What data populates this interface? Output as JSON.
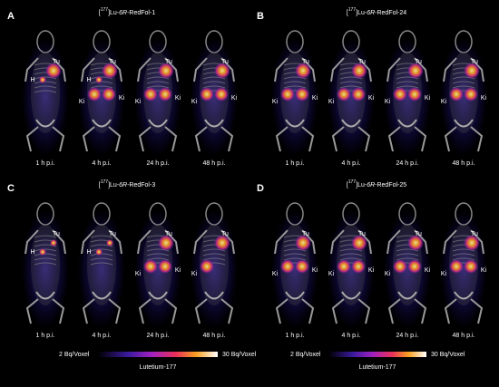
{
  "panels": [
    {
      "letter": "A",
      "title": [
        "[",
        "177",
        "]Lu-",
        "6R",
        "-RedFol-1"
      ],
      "images": [
        {
          "time": "1 h p.i.",
          "labels": [
            "Tu",
            "H"
          ]
        },
        {
          "time": "4 h p.i.",
          "labels": [
            "H",
            "Tu",
            "Ki",
            "Ki"
          ]
        },
        {
          "time": "24 h p.i.",
          "labels": [
            "Tu",
            "Ki",
            "Ki"
          ]
        },
        {
          "time": "48 h p.i.",
          "labels": [
            "Tu",
            "Ki",
            "Ki"
          ]
        }
      ]
    },
    {
      "letter": "B",
      "title": [
        "[",
        "177",
        "]Lu-",
        "6R",
        "-RedFol-24"
      ],
      "images": [
        {
          "time": "1 h p.i.",
          "labels": [
            "Tu",
            "Ki",
            "Ki"
          ]
        },
        {
          "time": "4 h p.i.",
          "labels": [
            "Tu",
            "Ki",
            "Ki"
          ]
        },
        {
          "time": "24 h p.i.",
          "labels": [
            "Tu",
            "Ki",
            "Ki"
          ]
        },
        {
          "time": "48 h p.i.",
          "labels": [
            "Tu",
            "Ki",
            "Ki"
          ]
        }
      ]
    },
    {
      "letter": "C",
      "title": [
        "[",
        "177",
        "]Lu-",
        "6R",
        "-RedFol-3"
      ],
      "images": [
        {
          "time": "1 h p.i.",
          "labels": [
            "Tu",
            "H"
          ]
        },
        {
          "time": "4 h p.i.",
          "labels": [
            "Tu",
            "H"
          ]
        },
        {
          "time": "24 h p.i.",
          "labels": [
            "Tu",
            "Ki",
            "Ki"
          ]
        },
        {
          "time": "48 h p.i.",
          "labels": [
            "Tu",
            "Ki"
          ]
        }
      ]
    },
    {
      "letter": "D",
      "title": [
        "[",
        "177",
        "]Lu-",
        "6R",
        "-RedFol-25"
      ],
      "images": [
        {
          "time": "1 h p.i.",
          "labels": [
            "Tu",
            "Ki",
            "Ki"
          ]
        },
        {
          "time": "4 h p.i.",
          "labels": [
            "Tu",
            "Ki",
            "Ki"
          ]
        },
        {
          "time": "24 h p.i.",
          "labels": [
            "Tu",
            "Ki",
            "Ki"
          ]
        },
        {
          "time": "48 h p.i.",
          "labels": [
            "Tu",
            "Ki",
            "Ki"
          ]
        }
      ]
    }
  ],
  "colorbars": [
    {
      "min_label": "2 Bq/Voxel",
      "max_label": "30 Bq/Voxel",
      "name": "Lutetium-177"
    },
    {
      "min_label": "2 Bq/Voxel",
      "max_label": "30 Bq/Voxel",
      "name": "Lutetium-177"
    }
  ]
}
